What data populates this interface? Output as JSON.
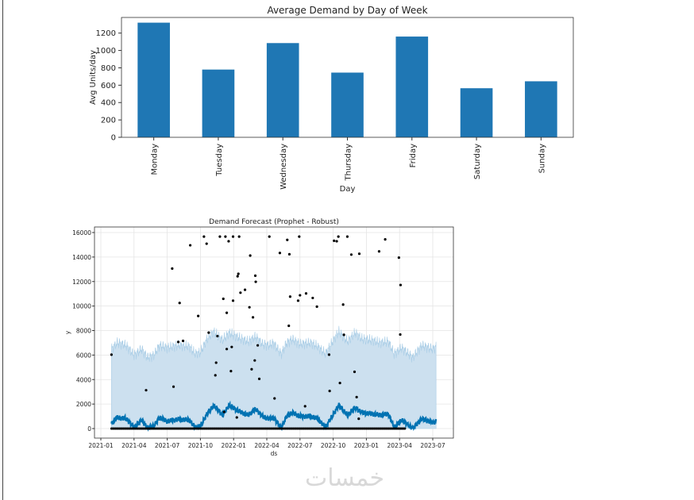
{
  "watermark": "خمسات",
  "chart_data": [
    {
      "type": "bar",
      "title": "Average Demand by Day of Week",
      "xlabel": "Day",
      "ylabel": "Avg Units/day",
      "categories": [
        "Monday",
        "Tuesday",
        "Wednesday",
        "Thursday",
        "Friday",
        "Saturday",
        "Sunday"
      ],
      "values": [
        1320,
        780,
        1085,
        745,
        1160,
        565,
        645
      ],
      "ylim": [
        0,
        1380
      ],
      "yticks": [
        0,
        200,
        400,
        600,
        800,
        1000,
        1200
      ],
      "color": "#1f77b4",
      "grid": false
    },
    {
      "type": "scatter",
      "title": "Demand Forecast (Prophet - Robust)",
      "xlabel": "ds",
      "ylabel": "y",
      "x_unit": "months since 2021-01",
      "xticks": [
        {
          "m": 0,
          "label": "2021-01"
        },
        {
          "m": 3,
          "label": "2021-04"
        },
        {
          "m": 6,
          "label": "2021-07"
        },
        {
          "m": 9,
          "label": "2021-10"
        },
        {
          "m": 12,
          "label": "2022-01"
        },
        {
          "m": 15,
          "label": "2022-04"
        },
        {
          "m": 18,
          "label": "2022-07"
        },
        {
          "m": 21,
          "label": "2022-10"
        },
        {
          "m": 24,
          "label": "2023-01"
        },
        {
          "m": 27,
          "label": "2023-04"
        },
        {
          "m": 30,
          "label": "2023-07"
        }
      ],
      "yticks": [
        0,
        2000,
        4000,
        6000,
        8000,
        10000,
        12000,
        14000,
        16000
      ],
      "xlim": [
        -0.6,
        31.2
      ],
      "ylim": [
        -1000,
        16450
      ],
      "grid": true,
      "colors": {
        "points": "#000000",
        "forecast": "#0072b2",
        "band": "#cce0ef",
        "band_edge": "#a9cde6"
      },
      "zero_observations_range": [
        0.96,
        27.5
      ],
      "observations": [
        [
          0.96,
          6030
        ],
        [
          4.09,
          3130
        ],
        [
          6.45,
          13060
        ],
        [
          6.57,
          3420
        ],
        [
          7.12,
          10250
        ],
        [
          7.0,
          7070
        ],
        [
          7.43,
          7160
        ],
        [
          8.08,
          14960
        ],
        [
          8.8,
          9190
        ],
        [
          9.32,
          15670
        ],
        [
          9.56,
          15090
        ],
        [
          9.75,
          7830
        ],
        [
          10.35,
          4350
        ],
        [
          10.42,
          5380
        ],
        [
          10.54,
          7550
        ],
        [
          10.76,
          15670
        ],
        [
          11.07,
          10590
        ],
        [
          11.14,
          1360
        ],
        [
          11.26,
          15670
        ],
        [
          11.38,
          9450
        ],
        [
          11.38,
          6490
        ],
        [
          11.55,
          15290
        ],
        [
          11.76,
          4690
        ],
        [
          11.83,
          6660
        ],
        [
          11.95,
          15670
        ],
        [
          11.95,
          10440
        ],
        [
          12.29,
          910
        ],
        [
          12.36,
          12430
        ],
        [
          12.43,
          12630
        ],
        [
          12.5,
          15670
        ],
        [
          12.62,
          11090
        ],
        [
          13.03,
          11330
        ],
        [
          13.43,
          9900
        ],
        [
          13.5,
          14120
        ],
        [
          13.63,
          4840
        ],
        [
          13.75,
          9080
        ],
        [
          13.91,
          5560
        ],
        [
          13.96,
          12480
        ],
        [
          14.0,
          11980
        ],
        [
          14.18,
          6790
        ],
        [
          14.32,
          4060
        ],
        [
          15.23,
          15670
        ],
        [
          15.7,
          2460
        ],
        [
          16.18,
          14330
        ],
        [
          16.85,
          15400
        ],
        [
          16.99,
          8390
        ],
        [
          17.04,
          14230
        ],
        [
          17.11,
          10770
        ],
        [
          17.83,
          10440
        ],
        [
          17.93,
          15670
        ],
        [
          18.0,
          10880
        ],
        [
          18.46,
          1820
        ],
        [
          18.55,
          11030
        ],
        [
          19.15,
          10660
        ],
        [
          19.53,
          9950
        ],
        [
          20.63,
          6030
        ],
        [
          20.68,
          3070
        ],
        [
          21.08,
          15330
        ],
        [
          21.32,
          15290
        ],
        [
          21.47,
          15670
        ],
        [
          21.61,
          3720
        ],
        [
          21.9,
          10120
        ],
        [
          21.97,
          7650
        ],
        [
          22.28,
          15670
        ],
        [
          22.64,
          14200
        ],
        [
          22.93,
          4630
        ],
        [
          23.12,
          2570
        ],
        [
          23.31,
          800
        ],
        [
          23.36,
          14270
        ],
        [
          25.15,
          14460
        ],
        [
          25.7,
          15440
        ],
        [
          26.94,
          13950
        ],
        [
          27.06,
          7680
        ],
        [
          27.09,
          11720
        ]
      ],
      "yhat": [
        [
          0.96,
          400
        ],
        [
          1.5,
          900
        ],
        [
          2.3,
          800
        ],
        [
          3,
          100
        ],
        [
          3.7,
          700
        ],
        [
          4.2,
          50
        ],
        [
          4.8,
          200
        ],
        [
          5.3,
          900
        ],
        [
          6,
          600
        ],
        [
          7,
          750
        ],
        [
          8,
          700
        ],
        [
          8.5,
          100
        ],
        [
          9,
          200
        ],
        [
          9.6,
          1200
        ],
        [
          10.2,
          1900
        ],
        [
          11,
          1100
        ],
        [
          11.6,
          1900
        ],
        [
          12.5,
          1400
        ],
        [
          13.3,
          1100
        ],
        [
          14,
          1600
        ],
        [
          14.6,
          1000
        ],
        [
          15.2,
          800
        ],
        [
          15.6,
          900
        ],
        [
          16.3,
          50
        ],
        [
          16.8,
          1000
        ],
        [
          17.3,
          1300
        ],
        [
          18,
          1000
        ],
        [
          19,
          1000
        ],
        [
          19.6,
          800
        ],
        [
          20.3,
          100
        ],
        [
          21.5,
          1900
        ],
        [
          22.3,
          1100
        ],
        [
          23,
          1700
        ],
        [
          23.6,
          1300
        ],
        [
          24.5,
          1200
        ],
        [
          25.2,
          1100
        ],
        [
          26,
          1200
        ],
        [
          26.5,
          100
        ],
        [
          27.2,
          700
        ],
        [
          28.2,
          0
        ],
        [
          29,
          800
        ],
        [
          30,
          500
        ],
        [
          30.3,
          600
        ]
      ],
      "yhat_upper": [
        [
          0.96,
          6500
        ],
        [
          1.5,
          7000
        ],
        [
          2.3,
          6800
        ],
        [
          3,
          6000
        ],
        [
          3.7,
          6500
        ],
        [
          4.2,
          5800
        ],
        [
          4.8,
          6000
        ],
        [
          5.3,
          6800
        ],
        [
          6,
          6600
        ],
        [
          7,
          6800
        ],
        [
          8,
          6700
        ],
        [
          8.5,
          6100
        ],
        [
          9,
          6200
        ],
        [
          9.6,
          7300
        ],
        [
          10.2,
          7900
        ],
        [
          11,
          7200
        ],
        [
          11.6,
          7800
        ],
        [
          12.5,
          7400
        ],
        [
          13.3,
          7100
        ],
        [
          14,
          7500
        ],
        [
          14.6,
          6900
        ],
        [
          15.2,
          6800
        ],
        [
          15.6,
          7000
        ],
        [
          16.3,
          6100
        ],
        [
          16.8,
          7000
        ],
        [
          17.3,
          7300
        ],
        [
          18,
          6900
        ],
        [
          19,
          7000
        ],
        [
          19.6,
          6700
        ],
        [
          20.3,
          6100
        ],
        [
          21.5,
          7900
        ],
        [
          22.3,
          7100
        ],
        [
          23,
          7800
        ],
        [
          23.6,
          7300
        ],
        [
          24.5,
          7200
        ],
        [
          25.2,
          7000
        ],
        [
          26,
          7100
        ],
        [
          26.5,
          6100
        ],
        [
          27.2,
          6600
        ],
        [
          28.2,
          5800
        ],
        [
          29,
          6800
        ],
        [
          30,
          6500
        ],
        [
          30.3,
          6700
        ]
      ]
    }
  ]
}
